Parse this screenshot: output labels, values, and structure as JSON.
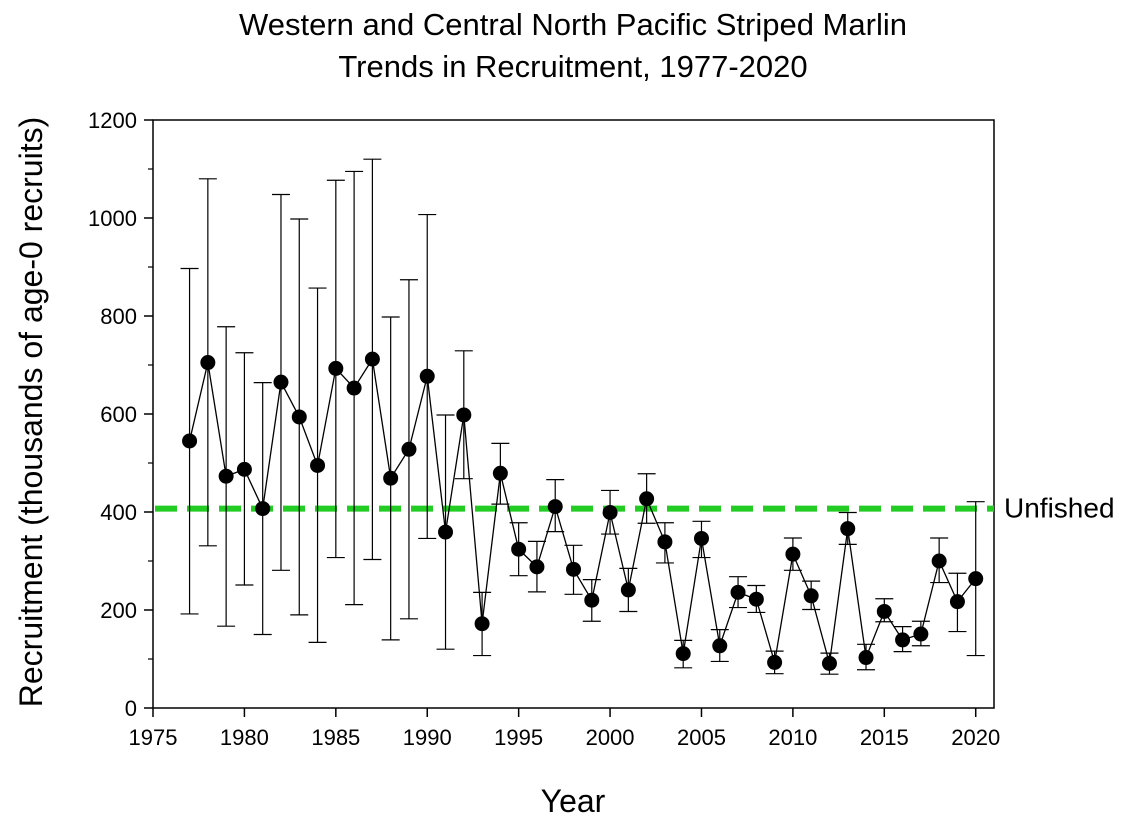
{
  "chart_data": {
    "type": "line",
    "title_line1": "Western and Central North Pacific Striped Marlin",
    "title_line2": "Trends in Recruitment, 1977-2020",
    "xlabel": "Year",
    "ylabel": "Recruitment (thousands of age-0 recruits)",
    "xlim": [
      1975,
      2021
    ],
    "ylim": [
      0,
      1200
    ],
    "x_ticks": [
      1975,
      1980,
      1985,
      1990,
      1995,
      2000,
      2005,
      2010,
      2015,
      2020
    ],
    "y_ticks": [
      0,
      200,
      400,
      600,
      800,
      1000,
      1200
    ],
    "grid": false,
    "marker_color": "#000000",
    "series": [
      {
        "x": [
          1977,
          1978,
          1979,
          1980,
          1981,
          1982,
          1983,
          1984,
          1985,
          1986,
          1987,
          1988,
          1989,
          1990,
          1991,
          1992,
          1993,
          1994,
          1995,
          1996,
          1997,
          1998,
          1999,
          2000,
          2001,
          2002,
          2003,
          2004,
          2005,
          2006,
          2007,
          2008,
          2009,
          2010,
          2011,
          2012,
          2013,
          2014,
          2015,
          2016,
          2017,
          2018,
          2019,
          2020
        ],
        "values": [
          545,
          705,
          473,
          487,
          407,
          665,
          594,
          495,
          693,
          653,
          712,
          469,
          528,
          677,
          359,
          598,
          172,
          479,
          324,
          288,
          411,
          283,
          220,
          399,
          241,
          427,
          339,
          111,
          346,
          127,
          236,
          222,
          93,
          314,
          229,
          91,
          366,
          103,
          197,
          139,
          151,
          300,
          217,
          264
        ],
        "lower": [
          192,
          331,
          167,
          251,
          150,
          281,
          190,
          134,
          307,
          211,
          303,
          139,
          182,
          346,
          120,
          468,
          107,
          416,
          270,
          237,
          360,
          232,
          177,
          355,
          197,
          377,
          296,
          82,
          307,
          95,
          205,
          195,
          70,
          281,
          201,
          69,
          334,
          78,
          176,
          115,
          127,
          256,
          156,
          107
        ],
        "upper": [
          897,
          1080,
          778,
          725,
          664,
          1048,
          998,
          857,
          1077,
          1095,
          1120,
          798,
          874,
          1007,
          598,
          729,
          236,
          540,
          378,
          340,
          466,
          332,
          262,
          444,
          285,
          478,
          378,
          138,
          381,
          160,
          268,
          250,
          116,
          347,
          259,
          112,
          399,
          130,
          223,
          166,
          177,
          347,
          275,
          421
        ]
      }
    ],
    "reference_line": {
      "value": 407,
      "label": "Unfished",
      "color": "#22cc22"
    }
  }
}
